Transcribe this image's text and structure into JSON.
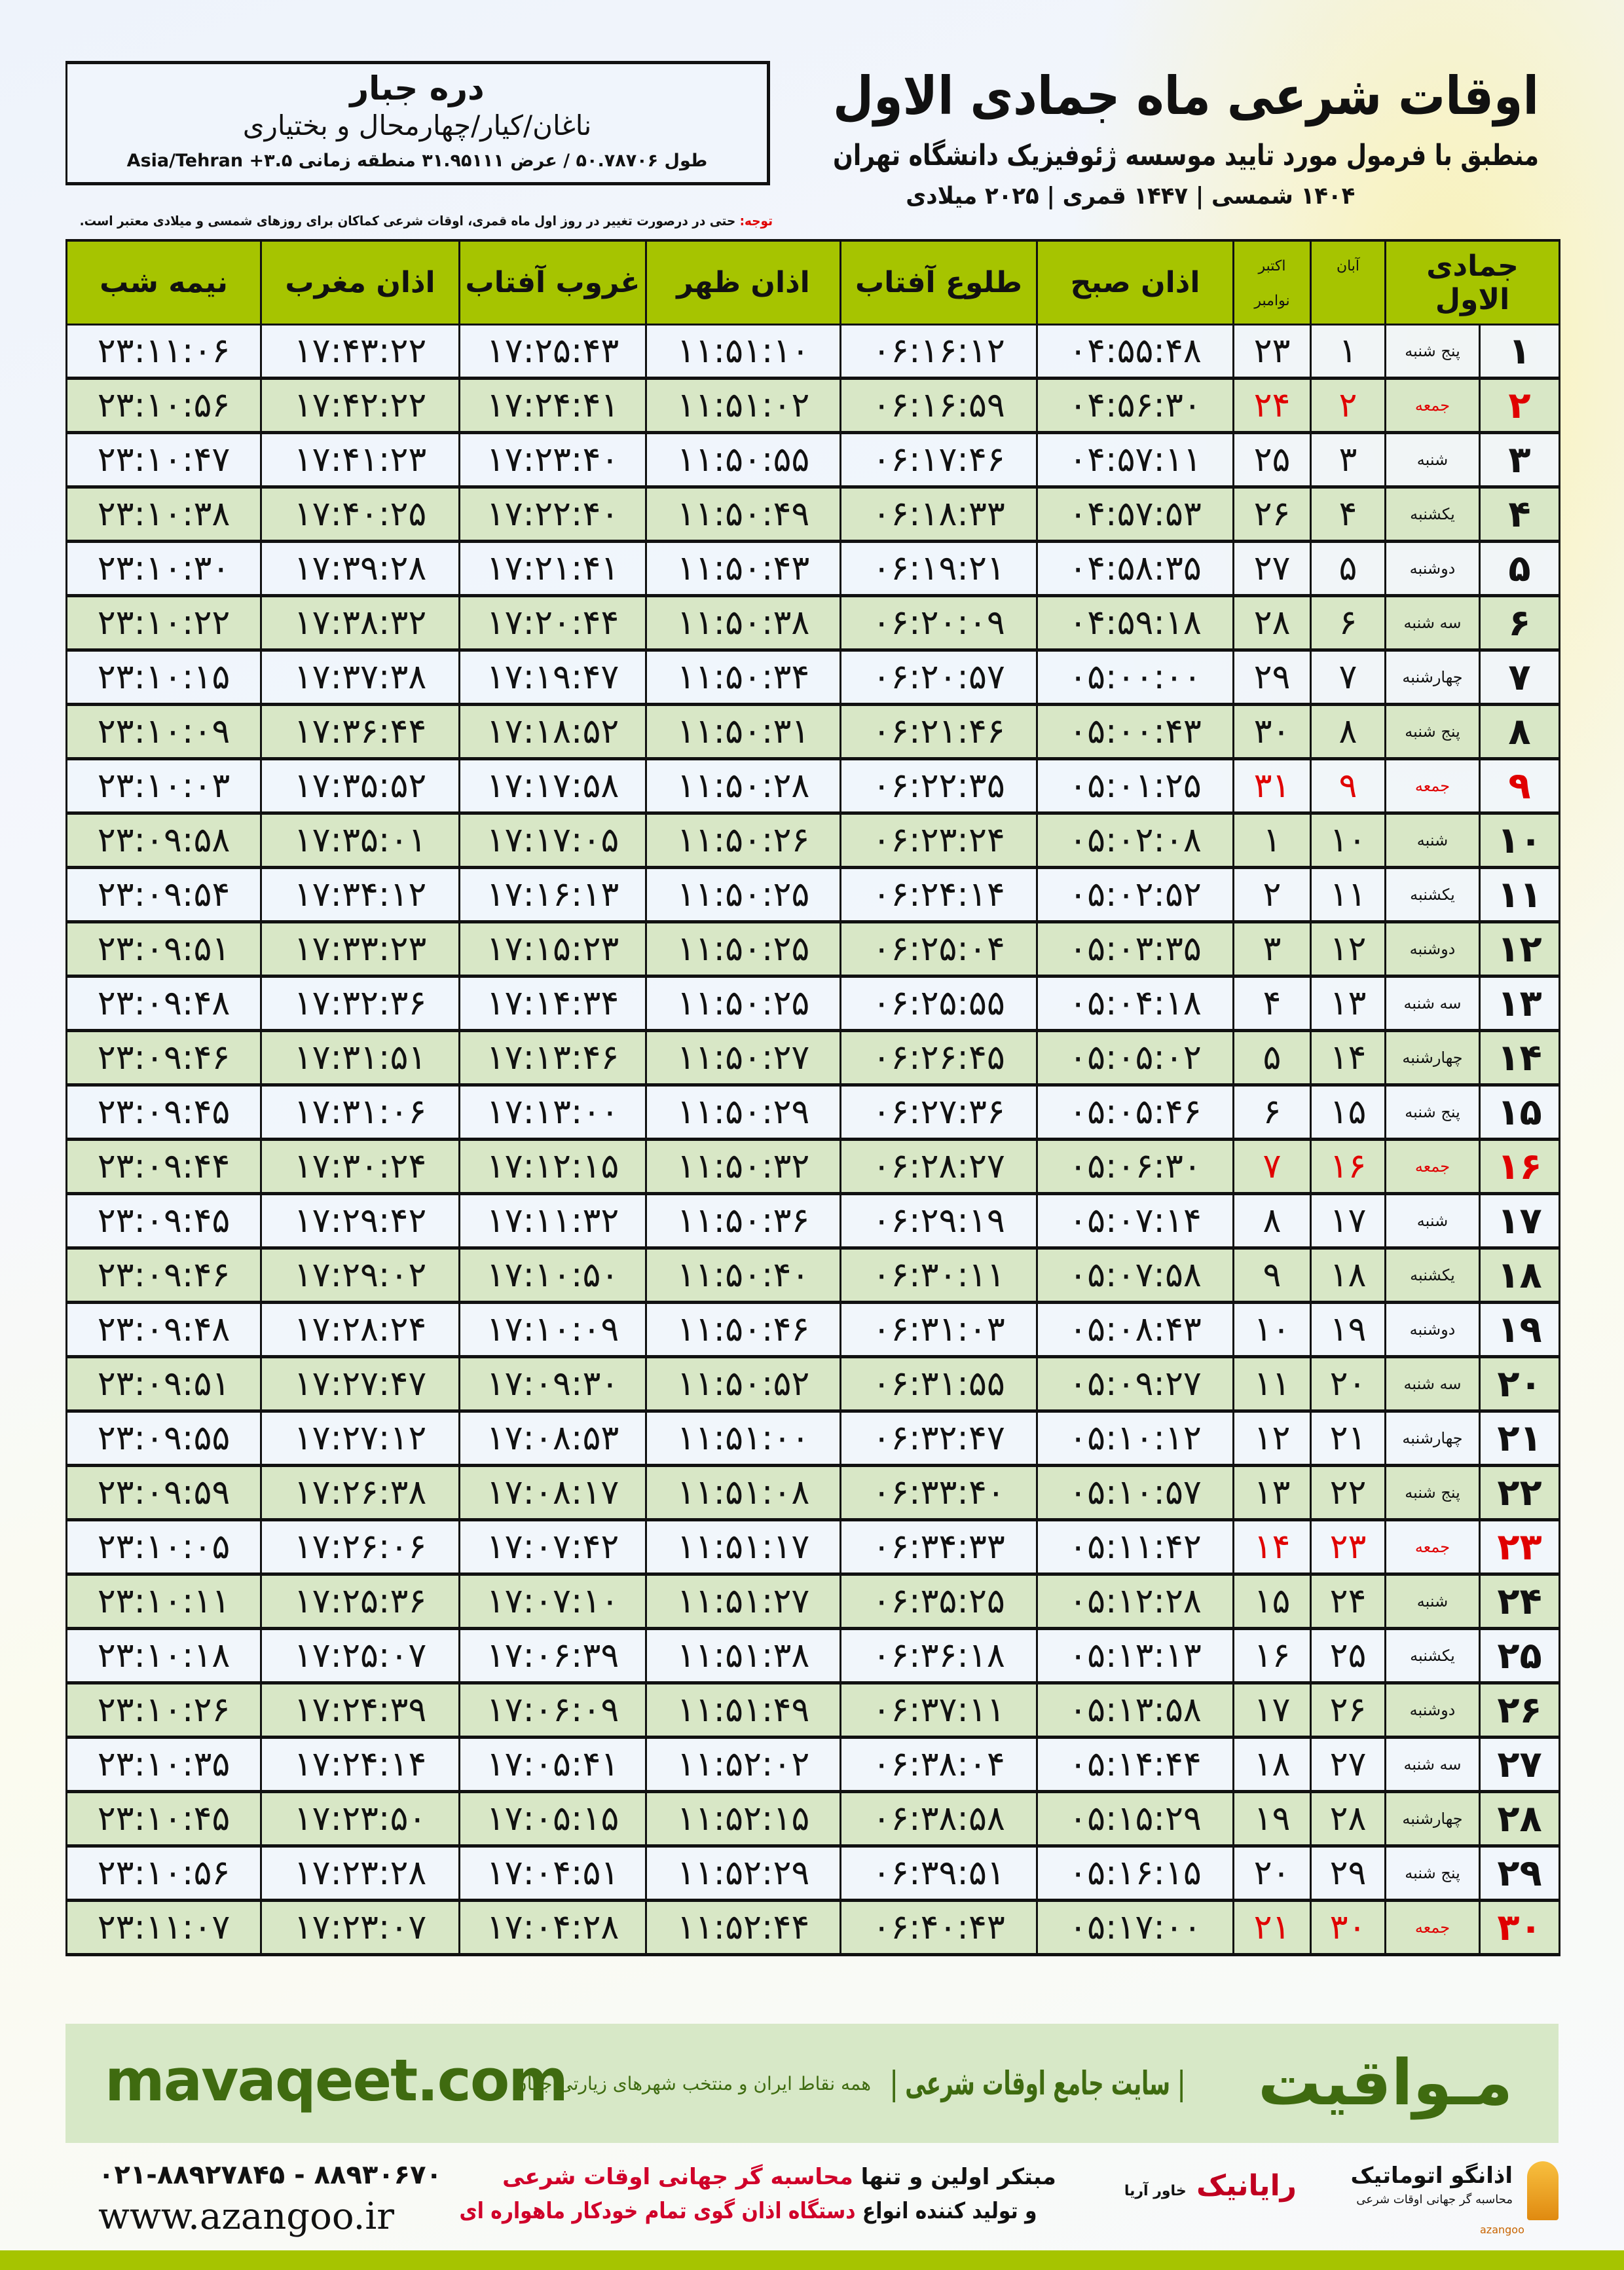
{
  "header": {
    "title": "اوقات شرعی ماه جمادی الاول",
    "subtitle": "منطبق با فرمول مورد تایید موسسه ژئوفیزیک دانشگاه تهران",
    "dates": "۱۴۰۴ شمسی | ۱۴۴۷ قمری | ۲۰۲۵ میلادی"
  },
  "location": {
    "name": "دره جبار",
    "region": "ناغان/کیار/چهارمحال و بختیاری",
    "coords": "طول ۵۰.۷۸۷۰۶ / عرض ۳۱.۹۵۱۱۱ منطقه زمانی ۳.۵+ Asia/Tehran"
  },
  "note": {
    "label": "توجه:",
    "text": " حتی در درصورت تغییر در روز اول ماه قمری، اوقات شرعی کماکان برای روزهای شمسی و میلادی معتبر است."
  },
  "columns": {
    "day": "جمادی الاول",
    "aban": "آبان",
    "greg1": "اکتبر",
    "greg2": "نوامبر",
    "fajr": "اذان صبح",
    "sunrise": "طلوع آفتاب",
    "dhuhr": "اذان ظهر",
    "sunset": "غروب آفتاب",
    "maghrib": "اذان مغرب",
    "midnight": "نیمه شب"
  },
  "colors": {
    "header_green": "#a6c400",
    "row_green": "#d8e7c6",
    "holiday_red": "#e00000",
    "brand_green": "#3f6b10"
  },
  "rows": [
    {
      "day": "۱",
      "weekday": "پنج شنبه",
      "aban": "۱",
      "greg": "۲۳",
      "fajr": "۰۴:۵۵:۴۸",
      "sunrise": "۰۶:۱۶:۱۲",
      "dhuhr": "۱۱:۵۱:۱۰",
      "sunset": "۱۷:۲۵:۴۳",
      "maghrib": "۱۷:۴۳:۲۲",
      "midnight": "۲۳:۱۱:۰۶",
      "holiday": false
    },
    {
      "day": "۲",
      "weekday": "جمعه",
      "aban": "۲",
      "greg": "۲۴",
      "fajr": "۰۴:۵۶:۳۰",
      "sunrise": "۰۶:۱۶:۵۹",
      "dhuhr": "۱۱:۵۱:۰۲",
      "sunset": "۱۷:۲۴:۴۱",
      "maghrib": "۱۷:۴۲:۲۲",
      "midnight": "۲۳:۱۰:۵۶",
      "holiday": true
    },
    {
      "day": "۳",
      "weekday": "شنبه",
      "aban": "۳",
      "greg": "۲۵",
      "fajr": "۰۴:۵۷:۱۱",
      "sunrise": "۰۶:۱۷:۴۶",
      "dhuhr": "۱۱:۵۰:۵۵",
      "sunset": "۱۷:۲۳:۴۰",
      "maghrib": "۱۷:۴۱:۲۳",
      "midnight": "۲۳:۱۰:۴۷",
      "holiday": false
    },
    {
      "day": "۴",
      "weekday": "یکشنبه",
      "aban": "۴",
      "greg": "۲۶",
      "fajr": "۰۴:۵۷:۵۳",
      "sunrise": "۰۶:۱۸:۳۳",
      "dhuhr": "۱۱:۵۰:۴۹",
      "sunset": "۱۷:۲۲:۴۰",
      "maghrib": "۱۷:۴۰:۲۵",
      "midnight": "۲۳:۱۰:۳۸",
      "holiday": false
    },
    {
      "day": "۵",
      "weekday": "دوشنبه",
      "aban": "۵",
      "greg": "۲۷",
      "fajr": "۰۴:۵۸:۳۵",
      "sunrise": "۰۶:۱۹:۲۱",
      "dhuhr": "۱۱:۵۰:۴۳",
      "sunset": "۱۷:۲۱:۴۱",
      "maghrib": "۱۷:۳۹:۲۸",
      "midnight": "۲۳:۱۰:۳۰",
      "holiday": false
    },
    {
      "day": "۶",
      "weekday": "سه شنبه",
      "aban": "۶",
      "greg": "۲۸",
      "fajr": "۰۴:۵۹:۱۸",
      "sunrise": "۰۶:۲۰:۰۹",
      "dhuhr": "۱۱:۵۰:۳۸",
      "sunset": "۱۷:۲۰:۴۴",
      "maghrib": "۱۷:۳۸:۳۲",
      "midnight": "۲۳:۱۰:۲۲",
      "holiday": false
    },
    {
      "day": "۷",
      "weekday": "چهارشنبه",
      "aban": "۷",
      "greg": "۲۹",
      "fajr": "۰۵:۰۰:۰۰",
      "sunrise": "۰۶:۲۰:۵۷",
      "dhuhr": "۱۱:۵۰:۳۴",
      "sunset": "۱۷:۱۹:۴۷",
      "maghrib": "۱۷:۳۷:۳۸",
      "midnight": "۲۳:۱۰:۱۵",
      "holiday": false
    },
    {
      "day": "۸",
      "weekday": "پنج شنبه",
      "aban": "۸",
      "greg": "۳۰",
      "fajr": "۰۵:۰۰:۴۳",
      "sunrise": "۰۶:۲۱:۴۶",
      "dhuhr": "۱۱:۵۰:۳۱",
      "sunset": "۱۷:۱۸:۵۲",
      "maghrib": "۱۷:۳۶:۴۴",
      "midnight": "۲۳:۱۰:۰۹",
      "holiday": false
    },
    {
      "day": "۹",
      "weekday": "جمعه",
      "aban": "۹",
      "greg": "۳۱",
      "fajr": "۰۵:۰۱:۲۵",
      "sunrise": "۰۶:۲۲:۳۵",
      "dhuhr": "۱۱:۵۰:۲۸",
      "sunset": "۱۷:۱۷:۵۸",
      "maghrib": "۱۷:۳۵:۵۲",
      "midnight": "۲۳:۱۰:۰۳",
      "holiday": true
    },
    {
      "day": "۱۰",
      "weekday": "شنبه",
      "aban": "۱۰",
      "greg": "۱",
      "fajr": "۰۵:۰۲:۰۸",
      "sunrise": "۰۶:۲۳:۲۴",
      "dhuhr": "۱۱:۵۰:۲۶",
      "sunset": "۱۷:۱۷:۰۵",
      "maghrib": "۱۷:۳۵:۰۱",
      "midnight": "۲۳:۰۹:۵۸",
      "holiday": false
    },
    {
      "day": "۱۱",
      "weekday": "یکشنبه",
      "aban": "۱۱",
      "greg": "۲",
      "fajr": "۰۵:۰۲:۵۲",
      "sunrise": "۰۶:۲۴:۱۴",
      "dhuhr": "۱۱:۵۰:۲۵",
      "sunset": "۱۷:۱۶:۱۳",
      "maghrib": "۱۷:۳۴:۱۲",
      "midnight": "۲۳:۰۹:۵۴",
      "holiday": false
    },
    {
      "day": "۱۲",
      "weekday": "دوشنبه",
      "aban": "۱۲",
      "greg": "۳",
      "fajr": "۰۵:۰۳:۳۵",
      "sunrise": "۰۶:۲۵:۰۴",
      "dhuhr": "۱۱:۵۰:۲۵",
      "sunset": "۱۷:۱۵:۲۳",
      "maghrib": "۱۷:۳۳:۲۳",
      "midnight": "۲۳:۰۹:۵۱",
      "holiday": false
    },
    {
      "day": "۱۳",
      "weekday": "سه شنبه",
      "aban": "۱۳",
      "greg": "۴",
      "fajr": "۰۵:۰۴:۱۸",
      "sunrise": "۰۶:۲۵:۵۵",
      "dhuhr": "۱۱:۵۰:۲۵",
      "sunset": "۱۷:۱۴:۳۴",
      "maghrib": "۱۷:۳۲:۳۶",
      "midnight": "۲۳:۰۹:۴۸",
      "holiday": false
    },
    {
      "day": "۱۴",
      "weekday": "چهارشنبه",
      "aban": "۱۴",
      "greg": "۵",
      "fajr": "۰۵:۰۵:۰۲",
      "sunrise": "۰۶:۲۶:۴۵",
      "dhuhr": "۱۱:۵۰:۲۷",
      "sunset": "۱۷:۱۳:۴۶",
      "maghrib": "۱۷:۳۱:۵۱",
      "midnight": "۲۳:۰۹:۴۶",
      "holiday": false
    },
    {
      "day": "۱۵",
      "weekday": "پنج شنبه",
      "aban": "۱۵",
      "greg": "۶",
      "fajr": "۰۵:۰۵:۴۶",
      "sunrise": "۰۶:۲۷:۳۶",
      "dhuhr": "۱۱:۵۰:۲۹",
      "sunset": "۱۷:۱۳:۰۰",
      "maghrib": "۱۷:۳۱:۰۶",
      "midnight": "۲۳:۰۹:۴۵",
      "holiday": false
    },
    {
      "day": "۱۶",
      "weekday": "جمعه",
      "aban": "۱۶",
      "greg": "۷",
      "fajr": "۰۵:۰۶:۳۰",
      "sunrise": "۰۶:۲۸:۲۷",
      "dhuhr": "۱۱:۵۰:۳۲",
      "sunset": "۱۷:۱۲:۱۵",
      "maghrib": "۱۷:۳۰:۲۴",
      "midnight": "۲۳:۰۹:۴۴",
      "holiday": true
    },
    {
      "day": "۱۷",
      "weekday": "شنبه",
      "aban": "۱۷",
      "greg": "۸",
      "fajr": "۰۵:۰۷:۱۴",
      "sunrise": "۰۶:۲۹:۱۹",
      "dhuhr": "۱۱:۵۰:۳۶",
      "sunset": "۱۷:۱۱:۳۲",
      "maghrib": "۱۷:۲۹:۴۲",
      "midnight": "۲۳:۰۹:۴۵",
      "holiday": false
    },
    {
      "day": "۱۸",
      "weekday": "یکشنبه",
      "aban": "۱۸",
      "greg": "۹",
      "fajr": "۰۵:۰۷:۵۸",
      "sunrise": "۰۶:۳۰:۱۱",
      "dhuhr": "۱۱:۵۰:۴۰",
      "sunset": "۱۷:۱۰:۵۰",
      "maghrib": "۱۷:۲۹:۰۲",
      "midnight": "۲۳:۰۹:۴۶",
      "holiday": false
    },
    {
      "day": "۱۹",
      "weekday": "دوشنبه",
      "aban": "۱۹",
      "greg": "۱۰",
      "fajr": "۰۵:۰۸:۴۳",
      "sunrise": "۰۶:۳۱:۰۳",
      "dhuhr": "۱۱:۵۰:۴۶",
      "sunset": "۱۷:۱۰:۰۹",
      "maghrib": "۱۷:۲۸:۲۴",
      "midnight": "۲۳:۰۹:۴۸",
      "holiday": false
    },
    {
      "day": "۲۰",
      "weekday": "سه شنبه",
      "aban": "۲۰",
      "greg": "۱۱",
      "fajr": "۰۵:۰۹:۲۷",
      "sunrise": "۰۶:۳۱:۵۵",
      "dhuhr": "۱۱:۵۰:۵۲",
      "sunset": "۱۷:۰۹:۳۰",
      "maghrib": "۱۷:۲۷:۴۷",
      "midnight": "۲۳:۰۹:۵۱",
      "holiday": false
    },
    {
      "day": "۲۱",
      "weekday": "چهارشنبه",
      "aban": "۲۱",
      "greg": "۱۲",
      "fajr": "۰۵:۱۰:۱۲",
      "sunrise": "۰۶:۳۲:۴۷",
      "dhuhr": "۱۱:۵۱:۰۰",
      "sunset": "۱۷:۰۸:۵۳",
      "maghrib": "۱۷:۲۷:۱۲",
      "midnight": "۲۳:۰۹:۵۵",
      "holiday": false
    },
    {
      "day": "۲۲",
      "weekday": "پنج شنبه",
      "aban": "۲۲",
      "greg": "۱۳",
      "fajr": "۰۵:۱۰:۵۷",
      "sunrise": "۰۶:۳۳:۴۰",
      "dhuhr": "۱۱:۵۱:۰۸",
      "sunset": "۱۷:۰۸:۱۷",
      "maghrib": "۱۷:۲۶:۳۸",
      "midnight": "۲۳:۰۹:۵۹",
      "holiday": false
    },
    {
      "day": "۲۳",
      "weekday": "جمعه",
      "aban": "۲۳",
      "greg": "۱۴",
      "fajr": "۰۵:۱۱:۴۲",
      "sunrise": "۰۶:۳۴:۳۳",
      "dhuhr": "۱۱:۵۱:۱۷",
      "sunset": "۱۷:۰۷:۴۲",
      "maghrib": "۱۷:۲۶:۰۶",
      "midnight": "۲۳:۱۰:۰۵",
      "holiday": true
    },
    {
      "day": "۲۴",
      "weekday": "شنبه",
      "aban": "۲۴",
      "greg": "۱۵",
      "fajr": "۰۵:۱۲:۲۸",
      "sunrise": "۰۶:۳۵:۲۵",
      "dhuhr": "۱۱:۵۱:۲۷",
      "sunset": "۱۷:۰۷:۱۰",
      "maghrib": "۱۷:۲۵:۳۶",
      "midnight": "۲۳:۱۰:۱۱",
      "holiday": false
    },
    {
      "day": "۲۵",
      "weekday": "یکشنبه",
      "aban": "۲۵",
      "greg": "۱۶",
      "fajr": "۰۵:۱۳:۱۳",
      "sunrise": "۰۶:۳۶:۱۸",
      "dhuhr": "۱۱:۵۱:۳۸",
      "sunset": "۱۷:۰۶:۳۹",
      "maghrib": "۱۷:۲۵:۰۷",
      "midnight": "۲۳:۱۰:۱۸",
      "holiday": false
    },
    {
      "day": "۲۶",
      "weekday": "دوشنبه",
      "aban": "۲۶",
      "greg": "۱۷",
      "fajr": "۰۵:۱۳:۵۸",
      "sunrise": "۰۶:۳۷:۱۱",
      "dhuhr": "۱۱:۵۱:۴۹",
      "sunset": "۱۷:۰۶:۰۹",
      "maghrib": "۱۷:۲۴:۳۹",
      "midnight": "۲۳:۱۰:۲۶",
      "holiday": false
    },
    {
      "day": "۲۷",
      "weekday": "سه شنبه",
      "aban": "۲۷",
      "greg": "۱۸",
      "fajr": "۰۵:۱۴:۴۴",
      "sunrise": "۰۶:۳۸:۰۴",
      "dhuhr": "۱۱:۵۲:۰۲",
      "sunset": "۱۷:۰۵:۴۱",
      "maghrib": "۱۷:۲۴:۱۴",
      "midnight": "۲۳:۱۰:۳۵",
      "holiday": false
    },
    {
      "day": "۲۸",
      "weekday": "چهارشنبه",
      "aban": "۲۸",
      "greg": "۱۹",
      "fajr": "۰۵:۱۵:۲۹",
      "sunrise": "۰۶:۳۸:۵۸",
      "dhuhr": "۱۱:۵۲:۱۵",
      "sunset": "۱۷:۰۵:۱۵",
      "maghrib": "۱۷:۲۳:۵۰",
      "midnight": "۲۳:۱۰:۴۵",
      "holiday": false
    },
    {
      "day": "۲۹",
      "weekday": "پنج شنبه",
      "aban": "۲۹",
      "greg": "۲۰",
      "fajr": "۰۵:۱۶:۱۵",
      "sunrise": "۰۶:۳۹:۵۱",
      "dhuhr": "۱۱:۵۲:۲۹",
      "sunset": "۱۷:۰۴:۵۱",
      "maghrib": "۱۷:۲۳:۲۸",
      "midnight": "۲۳:۱۰:۵۶",
      "holiday": false
    },
    {
      "day": "۳۰",
      "weekday": "جمعه",
      "aban": "۳۰",
      "greg": "۲۱",
      "fajr": "۰۵:۱۷:۰۰",
      "sunrise": "۰۶:۴۰:۴۳",
      "dhuhr": "۱۱:۵۲:۴۴",
      "sunset": "۱۷:۰۴:۲۸",
      "maghrib": "۱۷:۲۳:۰۷",
      "midnight": "۲۳:۱۱:۰۷",
      "holiday": true
    }
  ],
  "footer": {
    "brand": "مـواقیت",
    "slogan": "| سایت جامع اوقات شرعی |",
    "slogan_sub": "همه نقاط ایران و منتخب شهرهای زیارتی جهان",
    "site": "mavaqeet.com",
    "phone": "۰۲۱-۸۸۹۲۷۸۴۵ - ۸۸۹۳۰۶۷۰",
    "url": "www.azangoo.ir",
    "promo1_a": "مبتکر اولین و تنها ",
    "promo1_b": "محاسبه گر جهانی اوقات شرعی",
    "promo2_a": "و تولید کننده انواع ",
    "promo2_b": "دستگاه اذان گوی تمام خودکار ماهواره ای",
    "logo_rayanik": "رایانیک",
    "logo_rayanik_sub": "خاور آریا",
    "logo_azangoo": "اذانگو اتوماتیک",
    "logo_azangoo_tag": "محاسبه گر جهانی اوقات شرعی",
    "logo_azangoo_en": "azangoo"
  }
}
